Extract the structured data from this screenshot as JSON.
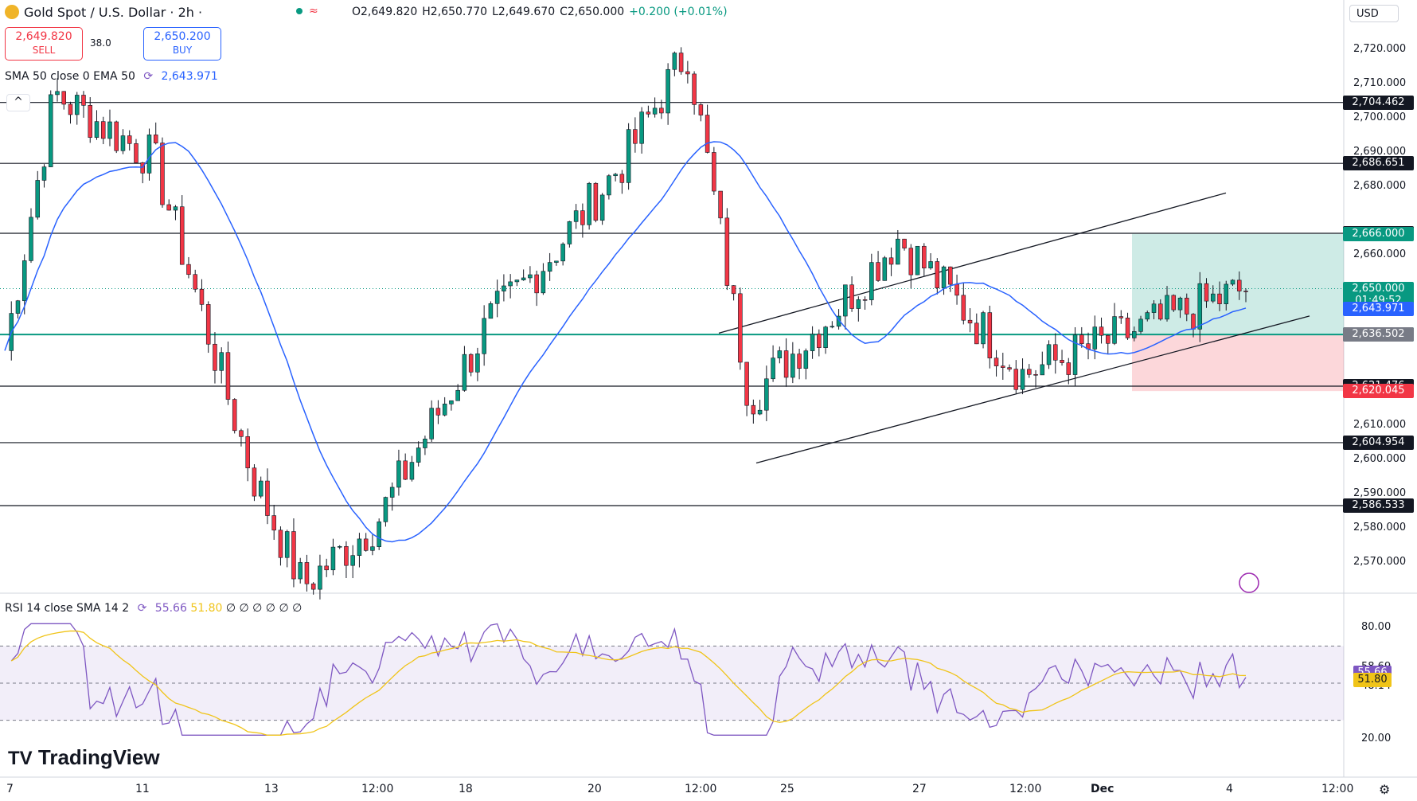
{
  "header": {
    "symbol": "Gold Spot / U.S. Dollar · 2h ·",
    "open": "O2,649.820",
    "high": "H2,650.770",
    "low": "L2,649.670",
    "close": "C2,650.000",
    "change": "+0.200 (+0.01%)",
    "sell_price": "2,649.820",
    "sell_label": "SELL",
    "spread": "38.0",
    "buy_price": "2,650.200",
    "buy_label": "BUY",
    "indicator": "SMA 50 close 0 EMA 50",
    "indicator_value": "2,643.971",
    "currency": "USD"
  },
  "rsi_header": {
    "label": "RSI 14 close SMA 14 2",
    "rsi_value": "55.66",
    "sma_value": "51.80",
    "extra": "∅ ∅ ∅ ∅ ∅ ∅"
  },
  "brand": "TradingView",
  "colors": {
    "up": "#089981",
    "down": "#f23645",
    "sma": "#2962ff",
    "rsi": "#7e57c2",
    "rsi_sma": "#f0c419",
    "level_green": "#089981"
  },
  "price_axis": [
    "2,720.000",
    "2,710.000",
    "2,700.000",
    "2,690.000",
    "2,680.000",
    "2,660.000",
    "2,600.000",
    "2,590.000",
    "2,580.000",
    "2,570.000",
    "2,610.000"
  ],
  "price_tags": [
    {
      "label": "2,704.462",
      "value": 2704.462,
      "color": "#131722"
    },
    {
      "label": "2,686.651",
      "value": 2686.651,
      "color": "#131722"
    },
    {
      "label": "2,666.189",
      "value": 2666.189,
      "color": "#131722"
    },
    {
      "label": "2,666.000",
      "value": 2666.0,
      "color": "#089981"
    },
    {
      "label": "2,650.000",
      "value": 2650.0,
      "color": "#089981"
    },
    {
      "label": "01:49:52",
      "value": 2646.4,
      "color": "#089981"
    },
    {
      "label": "2,643.971",
      "value": 2643.971,
      "color": "#2962ff"
    },
    {
      "label": "2,636.593",
      "value": 2636.593,
      "color": "#089981"
    },
    {
      "label": "2,636.502",
      "value": 2636.502,
      "color": "#787b86"
    },
    {
      "label": "2,621.476",
      "value": 2621.476,
      "color": "#131722"
    },
    {
      "label": "2,620.045",
      "value": 2620.045,
      "color": "#f23645"
    },
    {
      "label": "2,604.954",
      "value": 2604.954,
      "color": "#131722"
    },
    {
      "label": "2,586.533",
      "value": 2586.533,
      "color": "#131722"
    }
  ],
  "rsi_axis": [
    "80.00",
    "58.69",
    "48.14",
    "20.00"
  ],
  "rsi_tags": [
    {
      "label": "55.66",
      "value": 55.66,
      "color": "#7e57c2"
    },
    {
      "label": "51.80",
      "value": 51.8,
      "color": "#f0c419"
    }
  ],
  "time_axis": [
    "7",
    "11",
    "13",
    "12:00",
    "18",
    "20",
    "12:00",
    "25",
    "27",
    "12:00",
    "Dec",
    "4",
    "12:00"
  ],
  "chart_data": {
    "type": "candlestick",
    "title": "Gold Spot / U.S. Dollar · 2h",
    "y_range": [
      2565,
      2725
    ],
    "horizontal_levels": [
      2704.462,
      2686.651,
      2666.189,
      2636.593,
      2621.476,
      2604.954,
      2586.533
    ],
    "key_points": [
      {
        "time": "7",
        "price": 2632
      },
      {
        "time": "8",
        "price": 2707
      },
      {
        "time": "11",
        "price": 2688
      },
      {
        "time": "13",
        "price": 2595
      },
      {
        "time": "15",
        "price": 2563
      },
      {
        "time": "18",
        "price": 2582
      },
      {
        "time": "20",
        "price": 2640
      },
      {
        "time": "21",
        "price": 2660
      },
      {
        "time": "22",
        "price": 2688
      },
      {
        "time": "25",
        "price": 2720
      },
      {
        "time": "26",
        "price": 2618
      },
      {
        "time": "27",
        "price": 2644
      },
      {
        "time": "28",
        "price": 2665
      },
      {
        "time": "Dec",
        "price": 2625
      },
      {
        "time": "4",
        "price": 2650
      }
    ],
    "sma50": {
      "name": "SMA 50",
      "last": 2643.971
    },
    "rsi": {
      "last": 55.66,
      "sma_last": 51.8,
      "range": [
        20,
        80
      ]
    }
  }
}
